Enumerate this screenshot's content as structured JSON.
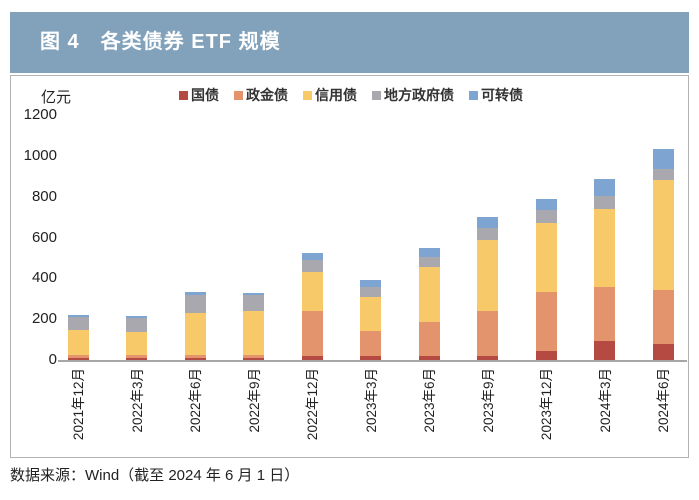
{
  "figure": {
    "title": "图 4　各类债券 ETF 规模",
    "source": "数据来源：Wind（截至 2024 年 6 月 1 日）"
  },
  "colors": {
    "title_bar_bg": "#82A2BB",
    "title_text": "#ffffff",
    "axis_line": "#a6a6a6",
    "panel_border": "#b3b3b3"
  },
  "chart_data": {
    "type": "bar",
    "stacked": true,
    "title": "各类债券 ETF 规模",
    "ylabel": "亿元",
    "xlabel": "",
    "ylim": [
      0,
      1200
    ],
    "yticks": [
      0,
      200,
      400,
      600,
      800,
      1000,
      1200
    ],
    "grid": false,
    "legend_position": "top",
    "categories": [
      "2021年12月",
      "2022年3月",
      "2022年6月",
      "2022年9月",
      "2022年12月",
      "2023年3月",
      "2023年6月",
      "2023年9月",
      "2023年12月",
      "2024年3月",
      "2024年6月"
    ],
    "series": [
      {
        "name": "国债",
        "color": "#B54A42",
        "values": [
          10,
          10,
          10,
          10,
          18,
          18,
          18,
          18,
          43,
          92,
          76
        ]
      },
      {
        "name": "政金债",
        "color": "#E3946C",
        "values": [
          15,
          13,
          15,
          15,
          220,
          122,
          170,
          220,
          290,
          268,
          268
        ]
      },
      {
        "name": "信用债",
        "color": "#F7C969",
        "values": [
          122,
          115,
          205,
          215,
          195,
          170,
          268,
          350,
          336,
          382,
          536
        ]
      },
      {
        "name": "地方政府债",
        "color": "#A8A8AE",
        "values": [
          65,
          67,
          88,
          80,
          57,
          50,
          50,
          57,
          65,
          62,
          57
        ]
      },
      {
        "name": "可转债",
        "color": "#7EA4D2",
        "values": [
          10,
          10,
          14,
          8,
          33,
          33,
          41,
          56,
          57,
          81,
          98
        ]
      }
    ]
  }
}
